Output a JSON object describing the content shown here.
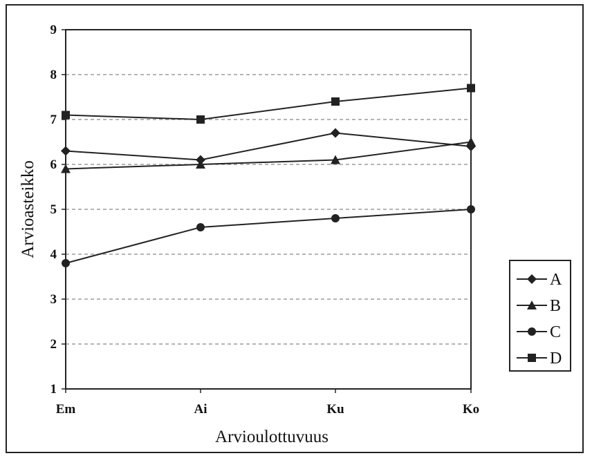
{
  "chart_data": {
    "type": "line",
    "title": "",
    "xlabel": "Arvioulottuvuus",
    "ylabel": "Arvioasteikko",
    "categories": [
      "Em",
      "Ai",
      "Ku",
      "Ko"
    ],
    "ylim": [
      1,
      9
    ],
    "yticks": [
      "1",
      "2",
      "3",
      "4",
      "5",
      "6",
      "7",
      "8",
      "9"
    ],
    "grid": "horizontal dashed",
    "legend_position": "right",
    "series": [
      {
        "name": "A",
        "marker": "diamond",
        "values": [
          6.3,
          6.1,
          6.7,
          6.4
        ]
      },
      {
        "name": "B",
        "marker": "triangle",
        "values": [
          5.9,
          6.0,
          6.1,
          6.5
        ]
      },
      {
        "name": "C",
        "marker": "circle",
        "values": [
          3.8,
          4.6,
          4.8,
          5.0
        ]
      },
      {
        "name": "D",
        "marker": "square",
        "values": [
          7.1,
          7.0,
          7.4,
          7.7
        ]
      }
    ],
    "colors": {
      "line": "#222222",
      "grid": "#888888"
    }
  }
}
